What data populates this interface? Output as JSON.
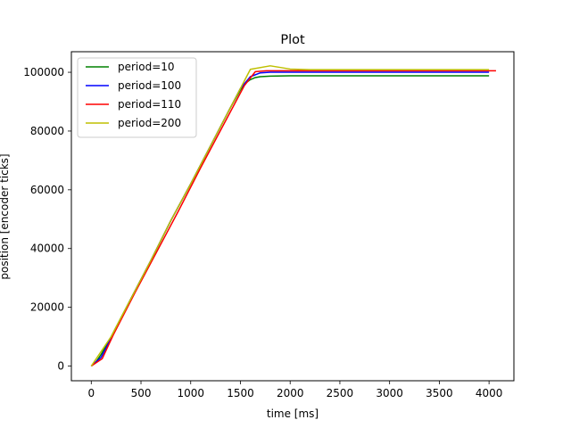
{
  "chart_data": {
    "type": "line",
    "title": "Plot",
    "xlabel": "time [ms]",
    "ylabel": "position [encoder ticks]",
    "xlim": [
      -200,
      4250
    ],
    "ylim": [
      -5000,
      107000
    ],
    "xticks": [
      0,
      500,
      1000,
      1500,
      2000,
      2500,
      3000,
      3500,
      4000
    ],
    "yticks": [
      0,
      20000,
      40000,
      60000,
      80000,
      100000
    ],
    "grid": false,
    "legend_position": "top-left",
    "series": [
      {
        "name": "period=10",
        "color": "#008000",
        "x": [
          0,
          50,
          100,
          200,
          400,
          600,
          800,
          1000,
          1200,
          1400,
          1500,
          1550,
          1600,
          1650,
          1700,
          1800,
          2000,
          2500,
          3000,
          4000
        ],
        "y": [
          0,
          1500,
          4000,
          10000,
          23000,
          36000,
          49500,
          62000,
          75000,
          88000,
          94000,
          96300,
          97500,
          98200,
          98500,
          98700,
          98800,
          98800,
          98800,
          98800
        ]
      },
      {
        "name": "period=100",
        "color": "#0000ff",
        "x": [
          0,
          100,
          200,
          400,
          600,
          800,
          1000,
          1200,
          1400,
          1500,
          1600,
          1700,
          1800,
          2000,
          2500,
          3000,
          4000
        ],
        "y": [
          0,
          3000,
          9500,
          23000,
          36000,
          49500,
          62000,
          75000,
          88000,
          94500,
          98500,
          99800,
          100000,
          100000,
          100000,
          100000,
          100000
        ]
      },
      {
        "name": "period=110",
        "color": "#ff0000",
        "x": [
          0,
          110,
          220,
          440,
          660,
          880,
          1100,
          1320,
          1540,
          1650,
          1760,
          1980,
          2500,
          3000,
          3500,
          4070
        ],
        "y": [
          0,
          2500,
          10500,
          25000,
          39000,
          53000,
          67500,
          81500,
          95500,
          100200,
          100500,
          100500,
          100500,
          100500,
          100500,
          100500
        ]
      },
      {
        "name": "period=200",
        "color": "#bfbf00",
        "x": [
          0,
          200,
          400,
          600,
          800,
          1000,
          1200,
          1400,
          1600,
          1800,
          2000,
          2200,
          2400,
          3000,
          3500,
          4000
        ],
        "y": [
          0,
          10000,
          23000,
          36000,
          49500,
          62000,
          75000,
          88000,
          101000,
          102200,
          101100,
          100900,
          100900,
          100900,
          100900,
          100900
        ]
      }
    ]
  }
}
